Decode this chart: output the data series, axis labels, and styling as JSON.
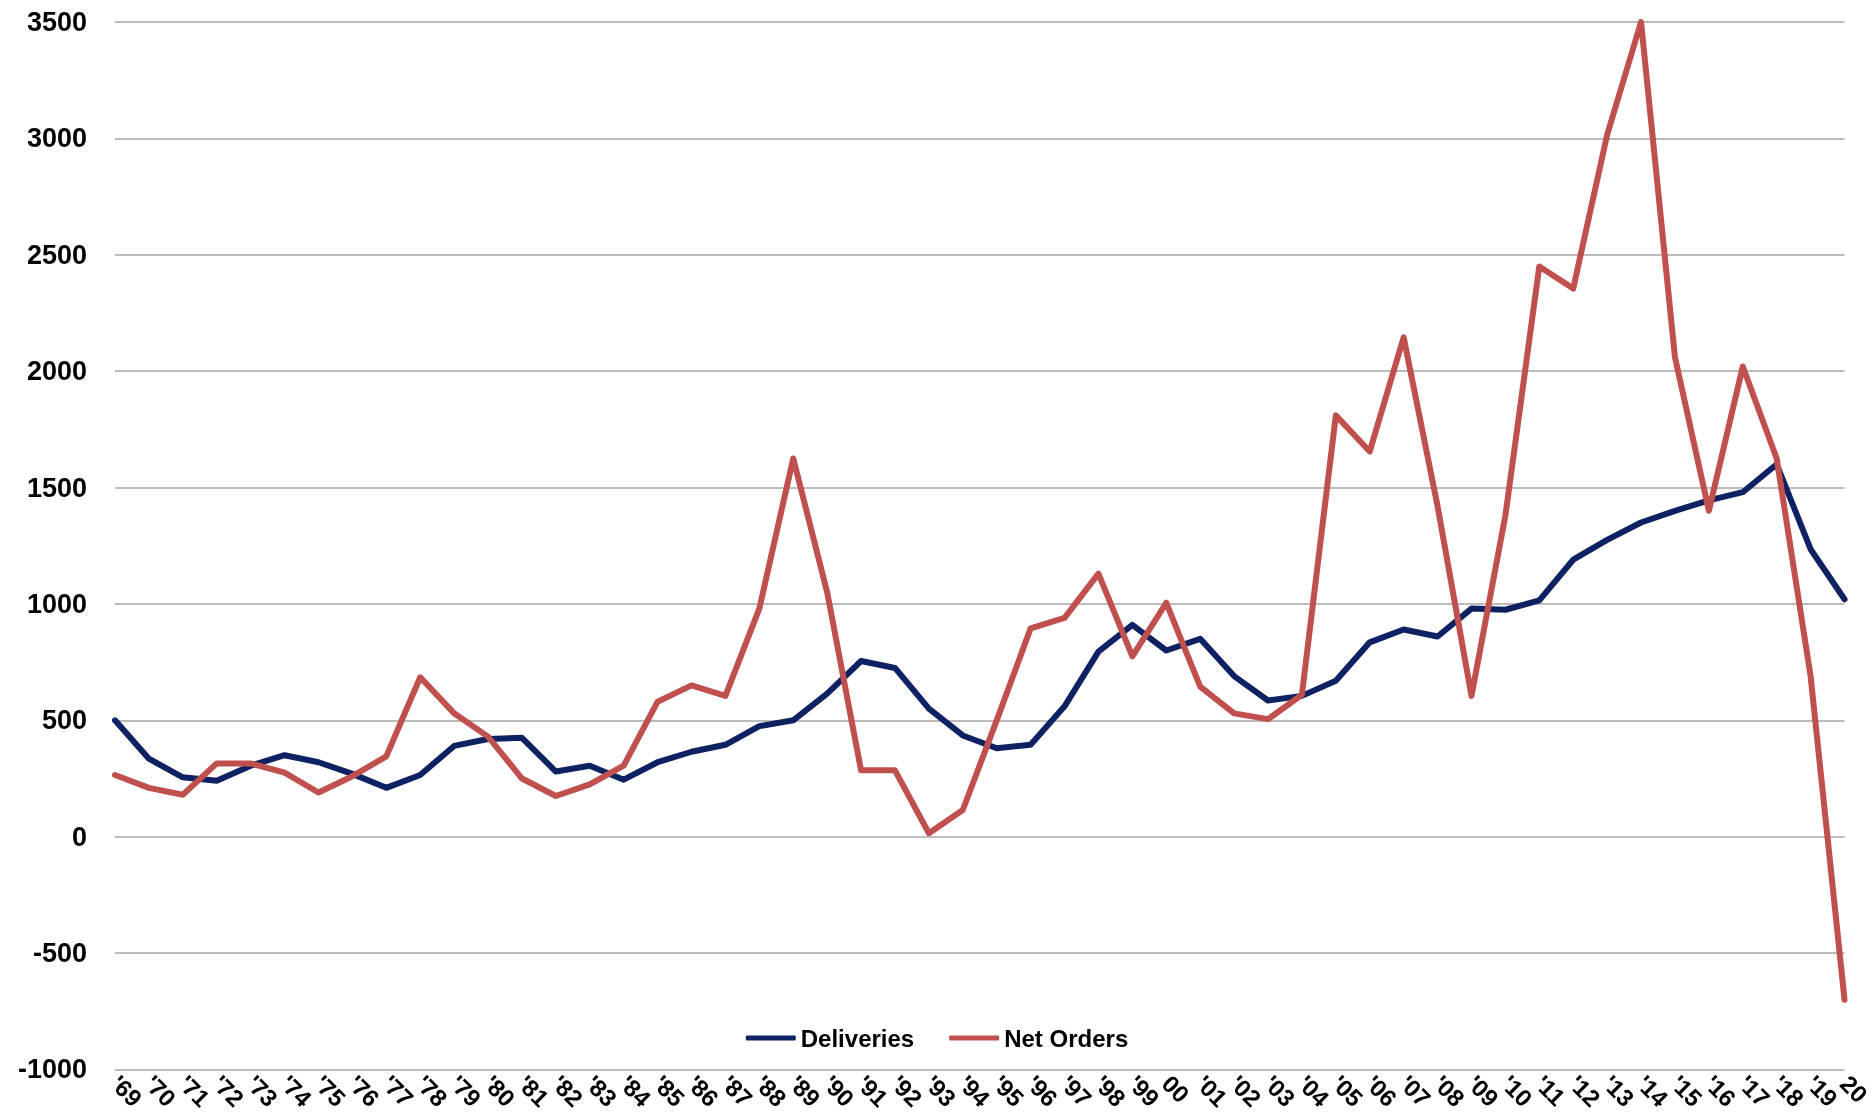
{
  "chart_data": {
    "type": "line",
    "categories": [
      "'69",
      "'70",
      "'71",
      "'72",
      "'73",
      "'74",
      "'75",
      "'76",
      "'77",
      "'78",
      "'79",
      "'80",
      "'81",
      "'82",
      "'83",
      "'84",
      "'85",
      "'86",
      "'87",
      "'88",
      "'89",
      "'90",
      "'91",
      "'92",
      "'93",
      "'94",
      "'95",
      "'96",
      "'97",
      "'98",
      "'99",
      "00",
      "'01",
      "'02",
      "'03",
      "'04",
      "'05",
      "'06",
      "'07",
      "'08",
      "'09",
      "'10",
      "'11",
      "'12",
      "'13",
      "'14",
      "'15",
      "'16",
      "'17",
      "'18",
      "'19",
      "20"
    ],
    "series": [
      {
        "name": "Deliveries",
        "color": "#0e2163",
        "values": [
          500,
          335,
          255,
          240,
          305,
          350,
          320,
          270,
          210,
          265,
          390,
          420,
          425,
          280,
          305,
          245,
          320,
          365,
          395,
          475,
          500,
          615,
          755,
          725,
          550,
          435,
          380,
          395,
          560,
          795,
          910,
          800,
          850,
          690,
          585,
          605,
          670,
          835,
          890,
          860,
          980,
          975,
          1015,
          1190,
          1275,
          1350,
          1400,
          1445,
          1480,
          1600,
          1235,
          1020
        ]
      },
      {
        "name": "Net Orders",
        "color": "#c0504d",
        "values": [
          265,
          210,
          180,
          315,
          315,
          275,
          190,
          260,
          345,
          685,
          530,
          430,
          250,
          175,
          225,
          305,
          580,
          650,
          605,
          980,
          1625,
          1050,
          285,
          285,
          15,
          115,
          500,
          895,
          940,
          1130,
          775,
          1005,
          645,
          530,
          505,
          610,
          1810,
          1655,
          2145,
          1420,
          605,
          1380,
          2450,
          2355,
          3015,
          3500,
          2060,
          1400,
          2020,
          1625,
          690,
          -700
        ]
      }
    ],
    "ylim": [
      -1000,
      3500
    ],
    "yticks": [
      -1000,
      -500,
      0,
      500,
      1000,
      1500,
      2000,
      2500,
      3000,
      3500
    ],
    "grid": "y",
    "legend": "bottom",
    "marker": "none",
    "line_style": "solid"
  }
}
